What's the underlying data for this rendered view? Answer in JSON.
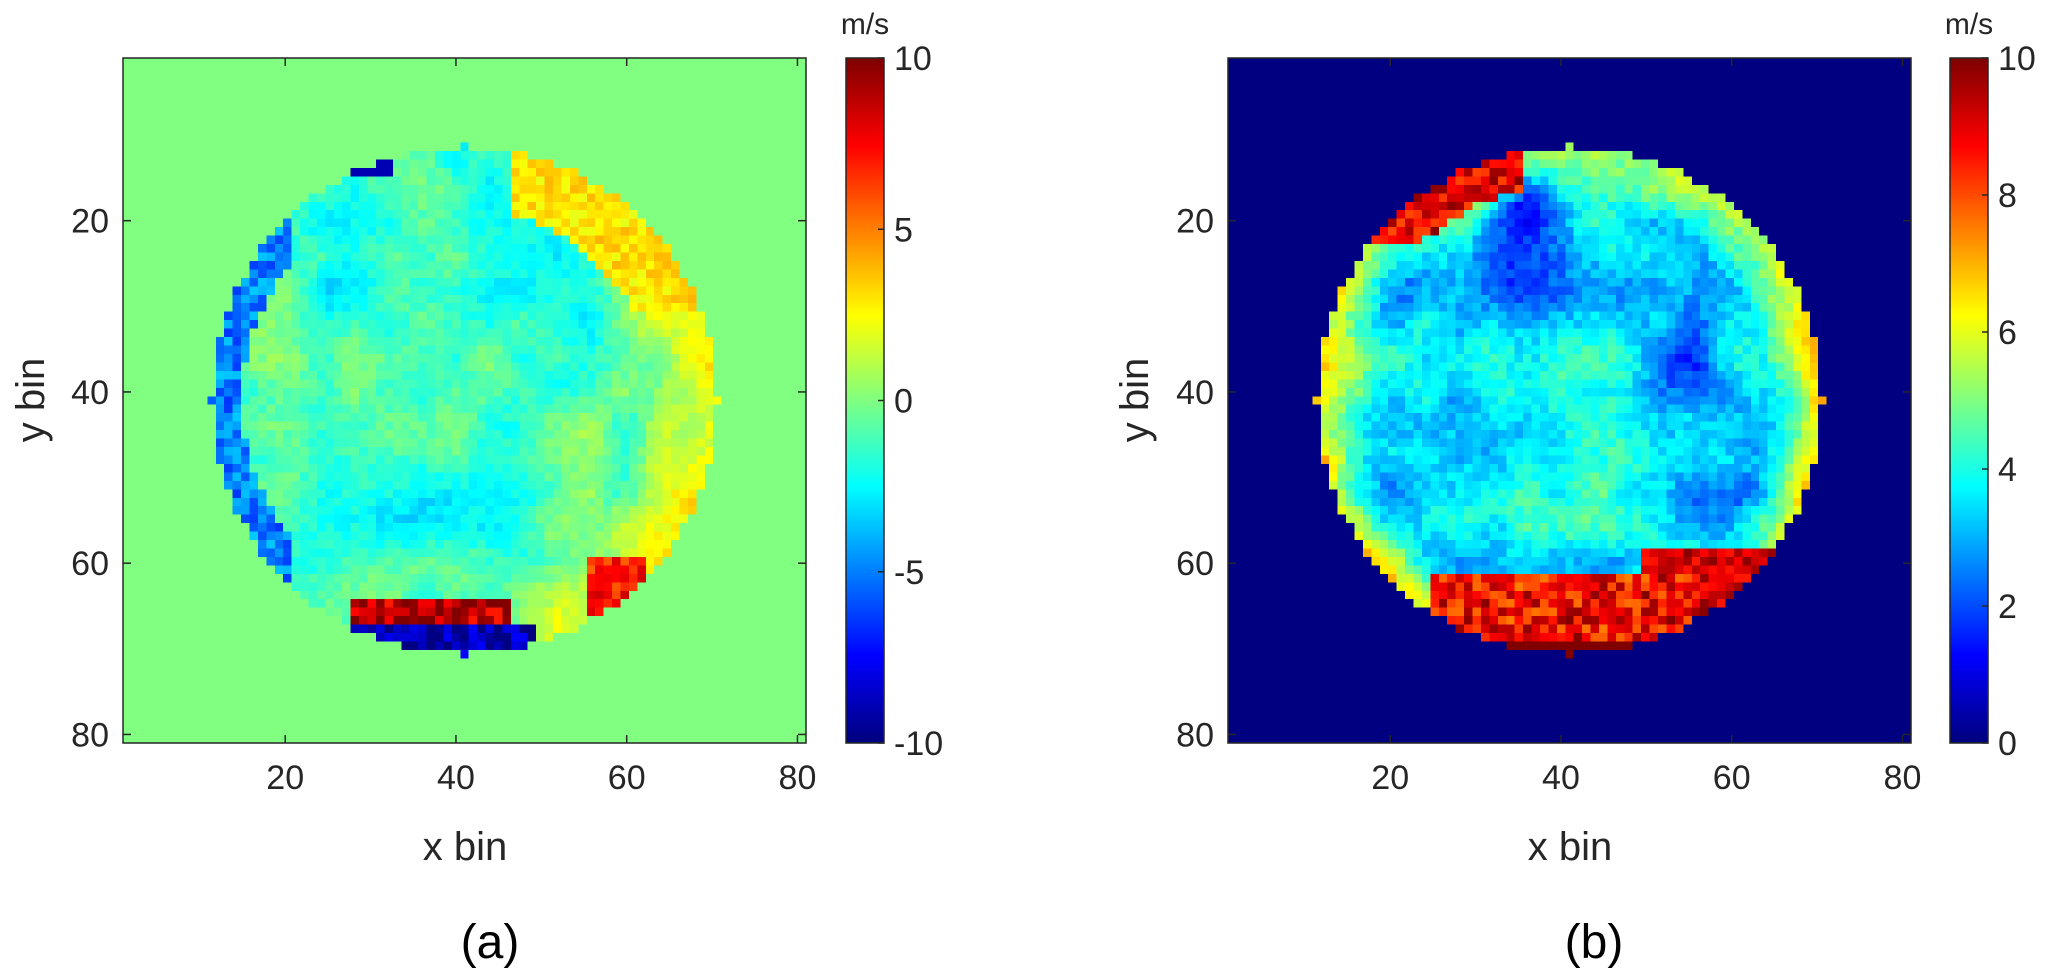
{
  "chart_data": [
    {
      "type": "heatmap",
      "panel_label": "(a)",
      "xlabel": "x bin",
      "ylabel": "y bin",
      "xlim": [
        1,
        81
      ],
      "ylim": [
        81,
        1
      ],
      "y_axis_direction": "top-to-bottom",
      "xticks": [
        20,
        40,
        60,
        80
      ],
      "yticks": [
        20,
        40,
        60,
        80
      ],
      "grid": false,
      "colormap": "jet",
      "colorbar": {
        "unit": "m/s",
        "range": [
          -10,
          10
        ],
        "ticks": [
          10,
          5,
          0,
          -5,
          -10
        ],
        "placement": "right"
      },
      "background_value": 0,
      "disk": {
        "center_x": 41,
        "center_y": 41,
        "radius": 30
      },
      "field_description_values": {
        "interior_mean": -1.5,
        "rim_upper_right": 3,
        "rim_lower_right": 7,
        "upper_left_patch": -9,
        "bottom_strip_upper": 9,
        "bottom_strip_lower": -9
      }
    },
    {
      "type": "heatmap",
      "panel_label": "(b)",
      "xlabel": "x bin",
      "ylabel": "y bin",
      "xlim": [
        1,
        81
      ],
      "ylim": [
        81,
        1
      ],
      "y_axis_direction": "top-to-bottom",
      "xticks": [
        20,
        40,
        60,
        80
      ],
      "yticks": [
        20,
        40,
        60,
        80
      ],
      "grid": false,
      "colormap": "jet",
      "colorbar": {
        "unit": "m/s",
        "range": [
          0,
          10
        ],
        "ticks": [
          10,
          8,
          6,
          4,
          2,
          0
        ],
        "placement": "right"
      },
      "background_value": 0,
      "disk": {
        "center_x": 41,
        "center_y": 41,
        "radius": 30
      },
      "field_description_values": {
        "interior_mean": 3,
        "rim_mean": 5,
        "lower_right_region": 10,
        "upper_left_rim": 10,
        "bottom_strip": 10
      }
    }
  ],
  "colors": {
    "text": "#262626",
    "axes": "#262626",
    "frame": "#262626"
  }
}
